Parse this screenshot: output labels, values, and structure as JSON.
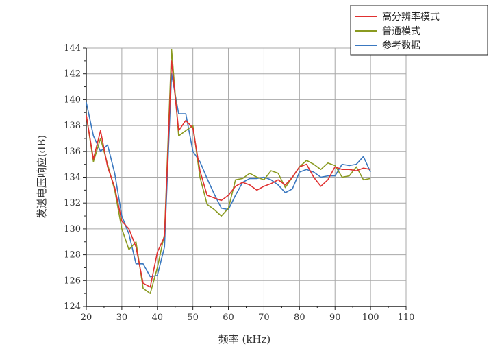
{
  "chart_data": {
    "type": "line",
    "xlabel": "频率 (kHz)",
    "ylabel": "发送电压响应(dB)",
    "xlim": [
      20,
      110
    ],
    "ylim": [
      124,
      144
    ],
    "xticks": [
      20,
      30,
      40,
      50,
      60,
      70,
      80,
      90,
      100,
      110
    ],
    "yticks": [
      124,
      126,
      128,
      130,
      132,
      134,
      136,
      138,
      140,
      142,
      144
    ],
    "grid": true,
    "legend_position": "top-right",
    "series": [
      {
        "name": "高分辨率模式",
        "color": "#e03030",
        "x": [
          20,
          22,
          24,
          26,
          28,
          30,
          32,
          34,
          36,
          38,
          40,
          42,
          44,
          46,
          48,
          50,
          52,
          54,
          56,
          58,
          60,
          62,
          64,
          66,
          68,
          70,
          72,
          74,
          76,
          78,
          80,
          82,
          84,
          86,
          88,
          90,
          92,
          94,
          96,
          98,
          100
        ],
        "y": [
          138.8,
          135.4,
          137.6,
          134.8,
          133.2,
          130.6,
          130.0,
          128.6,
          125.8,
          125.5,
          128.2,
          129.4,
          143.0,
          137.6,
          138.4,
          137.8,
          134.5,
          132.6,
          132.4,
          132.2,
          132.6,
          133.3,
          133.6,
          133.4,
          133.0,
          133.3,
          133.5,
          133.8,
          133.4,
          134.0,
          134.8,
          135.0,
          134.0,
          133.3,
          133.8,
          134.8,
          134.6,
          134.6,
          134.5,
          134.7,
          134.6
        ]
      },
      {
        "name": "普通模式",
        "color": "#8a9a20",
        "x": [
          20,
          22,
          24,
          26,
          28,
          30,
          32,
          34,
          36,
          38,
          40,
          42,
          44,
          46,
          48,
          50,
          52,
          54,
          56,
          58,
          60,
          62,
          64,
          66,
          68,
          70,
          72,
          74,
          76,
          78,
          80,
          82,
          84,
          86,
          88,
          90,
          92,
          94,
          96,
          98,
          100
        ],
        "y": [
          138.8,
          135.2,
          137.0,
          135.0,
          133.0,
          130.0,
          128.4,
          129.0,
          125.4,
          125.0,
          127.0,
          129.6,
          143.9,
          137.2,
          137.6,
          138.0,
          134.0,
          131.9,
          131.5,
          131.0,
          131.6,
          133.8,
          133.9,
          134.3,
          134.0,
          133.8,
          134.5,
          134.3,
          133.2,
          134.0,
          134.8,
          135.3,
          135.0,
          134.6,
          135.1,
          134.9,
          134.0,
          134.1,
          134.8,
          133.8,
          133.9
        ]
      },
      {
        "name": "参考数据",
        "color": "#3a78c0",
        "x": [
          20,
          22,
          24,
          26,
          28,
          30,
          32,
          34,
          36,
          38,
          40,
          42,
          44,
          46,
          48,
          50,
          52,
          54,
          56,
          58,
          60,
          62,
          64,
          66,
          68,
          70,
          72,
          74,
          76,
          78,
          80,
          82,
          84,
          86,
          88,
          90,
          92,
          94,
          96,
          98,
          100
        ],
        "y": [
          139.8,
          137.2,
          136.0,
          136.5,
          134.3,
          131.0,
          129.6,
          127.3,
          127.3,
          126.3,
          126.4,
          128.6,
          142.0,
          138.9,
          138.9,
          136.0,
          135.2,
          133.9,
          132.7,
          131.6,
          131.5,
          132.6,
          133.6,
          133.9,
          133.9,
          134.0,
          133.8,
          133.4,
          132.8,
          133.1,
          134.4,
          134.6,
          134.4,
          134.0,
          134.1,
          134.1,
          135.0,
          134.9,
          135.0,
          135.6,
          134.4
        ]
      }
    ]
  }
}
